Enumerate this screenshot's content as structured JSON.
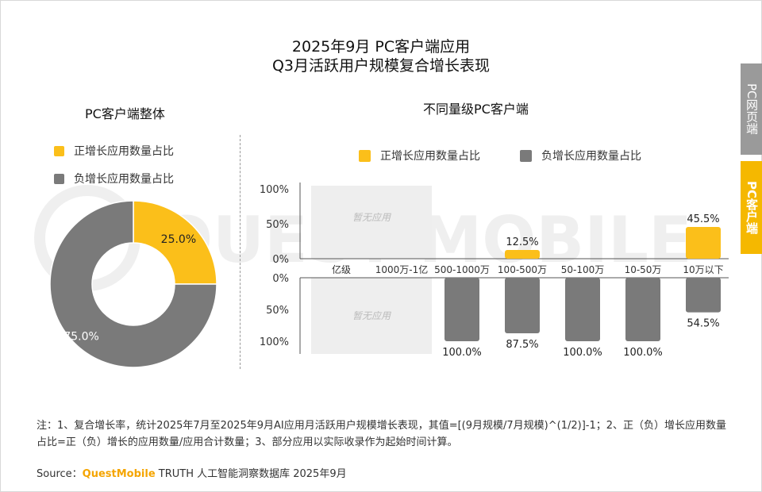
{
  "title_line1": "2025年9月 PC客户端应用",
  "title_line2": "Q3月活跃用户规模复合增长表现",
  "colors": {
    "positive": "#fbbf1a",
    "negative": "#7a7a7a",
    "tab_inactive": "#9a9a9a",
    "tab_active": "#f5b800",
    "brand": "#f5a500"
  },
  "side_tabs": {
    "web": "PC网页端",
    "client": "PC客户端"
  },
  "legend": {
    "positive": "正增长应用数量占比",
    "negative": "负增长应用数量占比"
  },
  "chart_data": [
    {
      "type": "pie",
      "title": "PC客户端整体",
      "labels": [
        "正增长应用数量占比",
        "负增长应用数量占比"
      ],
      "values": [
        25.0,
        75.0
      ],
      "value_labels": [
        "25.0%",
        "75.0%"
      ],
      "donut": true
    },
    {
      "type": "bar",
      "title": "不同量级PC客户端",
      "categories": [
        "亿级",
        "1000万-1亿",
        "500-1000万",
        "100-500万",
        "50-100万",
        "10-50万",
        "10万以下"
      ],
      "series": [
        {
          "name": "正增长应用数量占比",
          "values": [
            null,
            null,
            0,
            12.5,
            0,
            0,
            45.5
          ],
          "labels": [
            "",
            "",
            "",
            "12.5%",
            "",
            "",
            "45.5%"
          ]
        },
        {
          "name": "负增长应用数量占比",
          "values": [
            null,
            null,
            100,
            87.5,
            100,
            100,
            54.5
          ],
          "labels": [
            "",
            "",
            "100.0%",
            "87.5%",
            "100.0%",
            "100.0%",
            "54.5%"
          ]
        }
      ],
      "ylim": [
        0,
        100
      ],
      "upper_ticks": [
        "100%",
        "50%",
        "0%"
      ],
      "lower_ticks": [
        "0%",
        "50%",
        "100%"
      ],
      "no_data_label": "暂无应用"
    }
  ],
  "note": "注：1、复合增长率，统计2025年7月至2025年9月AI应用月活跃用户规模增长表现，其值=[(9月规模/7月规模)^(1/2)]-1；2、正（负）增长应用数量占比=正（负）增长的应用数量/应用合计数量；3、部分应用以实际收录作为起始时间计算。",
  "source": {
    "prefix": "Source：",
    "brand": "QuestMobile",
    "suffix": " TRUTH 人工智能洞察数据库 2025年9月"
  },
  "watermark": "QUEST MOBILE"
}
